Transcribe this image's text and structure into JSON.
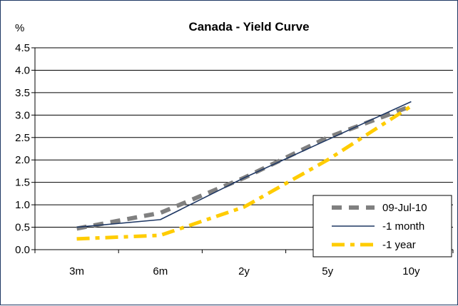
{
  "chart_data": {
    "type": "line",
    "title": "Canada - Yield Curve",
    "ylabel": "%",
    "xlabel": "",
    "categories": [
      "3m",
      "6m",
      "2y",
      "5y",
      "10y"
    ],
    "yticks": [
      "0.0",
      "0.5",
      "1.0",
      "1.5",
      "2.0",
      "2.5",
      "3.0",
      "3.5",
      "4.0",
      "4.5"
    ],
    "ylim": [
      0,
      4.5
    ],
    "grid": "horizontal",
    "legend_position": "bottom-right",
    "series": [
      {
        "name": "09-Jul-10",
        "values": [
          0.47,
          0.82,
          1.6,
          2.5,
          3.2
        ],
        "color": "#808080",
        "style": "dashed-thick"
      },
      {
        "name": "-1 month",
        "values": [
          0.5,
          0.67,
          1.6,
          2.45,
          3.3
        ],
        "color": "#1f3864",
        "style": "solid"
      },
      {
        "name": "-1 year",
        "values": [
          0.24,
          0.32,
          0.95,
          2.0,
          3.2
        ],
        "color": "#ffcc00",
        "style": "dash-dot-thick"
      }
    ]
  }
}
